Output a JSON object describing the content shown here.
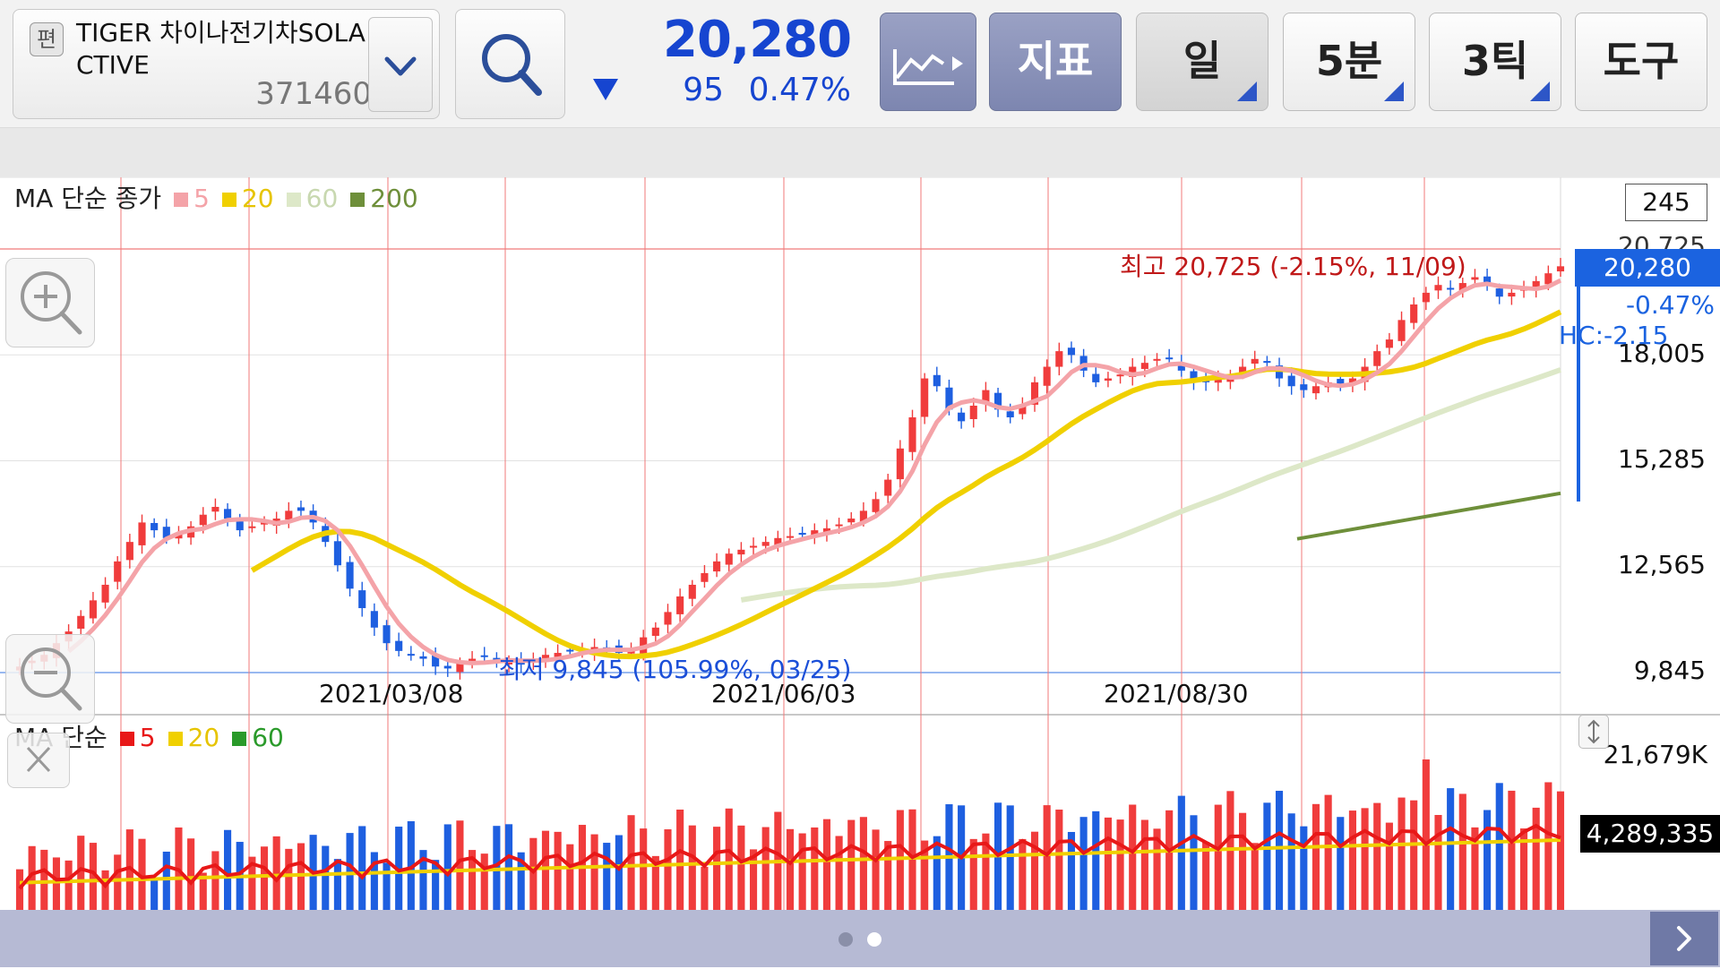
{
  "header": {
    "stock_badge": "편",
    "stock_name": "TIGER 차이나전기차SOLACTIVE",
    "stock_code": "371460",
    "price": "20,280",
    "change": "95",
    "change_pct": "0.47%",
    "buttons": {
      "chart_type": "",
      "indicator": "지표",
      "day": "일",
      "minute": "5분",
      "tick": "3틱",
      "tools": "도구"
    }
  },
  "price_panel": {
    "legend_title": "MA 단순 종가",
    "legend": [
      {
        "label": "5",
        "color": "#f4a3a8"
      },
      {
        "label": "20",
        "color": "#f0d000"
      },
      {
        "label": "60",
        "color": "#dde8c8"
      },
      {
        "label": "200",
        "color": "#6e8f3a"
      }
    ],
    "scale_box": "245",
    "axis_labels": [
      "18,005",
      "15,285",
      "12,565",
      "9,845"
    ],
    "partial_label": "20,725",
    "current_price": "20,280",
    "current_pct": "-0.47%",
    "hc_label": "HC:-2.15",
    "high_annotation": "최고 20,725 (-2.15%, 11/09)",
    "low_annotation": "최저 9,845 (105.99%, 03/25)",
    "dates": [
      "2021/03/08",
      "2021/06/03",
      "2021/08/30"
    ]
  },
  "volume_panel": {
    "legend_title": "MA 단순",
    "legend": [
      {
        "label": "5",
        "color": "#e81818"
      },
      {
        "label": "20",
        "color": "#f0d000"
      },
      {
        "label": "60",
        "color": "#2a9a2a"
      }
    ],
    "axis_max": "21,679K",
    "current_volume": "4,289,335"
  },
  "colors": {
    "up": "#f03c3c",
    "down": "#1e5fe0",
    "accent_blue": "#1645d0",
    "grid_red": "#f07a7a"
  },
  "chart_data": {
    "type": "candlestick",
    "y_range": [
      9845,
      20725
    ],
    "x_ticks": [
      "2021/03/08",
      "2021/06/03",
      "2021/08/30"
    ],
    "high": {
      "value": 20725,
      "date": "11/09"
    },
    "low": {
      "value": 9845,
      "date": "03/25"
    },
    "close_path": [
      10000,
      10150,
      10300,
      10600,
      10900,
      11300,
      11700,
      12100,
      12700,
      13200,
      13700,
      13500,
      13300,
      13400,
      13600,
      13900,
      14100,
      13800,
      13500,
      13600,
      13700,
      13800,
      14000,
      14000,
      13700,
      13200,
      12600,
      12000,
      11500,
      11000,
      10600,
      10400,
      10300,
      10200,
      10000,
      9950,
      10100,
      10200,
      10250,
      10150,
      10100,
      10050,
      10200,
      10300,
      10350,
      10400,
      10450,
      10500,
      10450,
      10350,
      10400,
      10750,
      11000,
      11400,
      11800,
      12100,
      12400,
      12700,
      12900,
      13000,
      13100,
      13200,
      13300,
      13350,
      13400,
      13500,
      13550,
      13650,
      13800,
      14000,
      14300,
      14800,
      15600,
      16400,
      17400,
      17200,
      16600,
      16300,
      16700,
      17100,
      16600,
      16400,
      16700,
      17300,
      17700,
      18100,
      18000,
      17600,
      17300,
      17400,
      17500,
      17700,
      17800,
      17900,
      17900,
      17600,
      17300,
      17300,
      17400,
      17500,
      17700,
      17900,
      17800,
      17400,
      17200,
      17100,
      17200,
      17300,
      17250,
      17400,
      17700,
      18100,
      18400,
      18900,
      19300,
      19600,
      19800,
      19700,
      19850,
      20000,
      19800,
      19500,
      19600,
      19700,
      19900,
      20100,
      20280
    ]
  }
}
